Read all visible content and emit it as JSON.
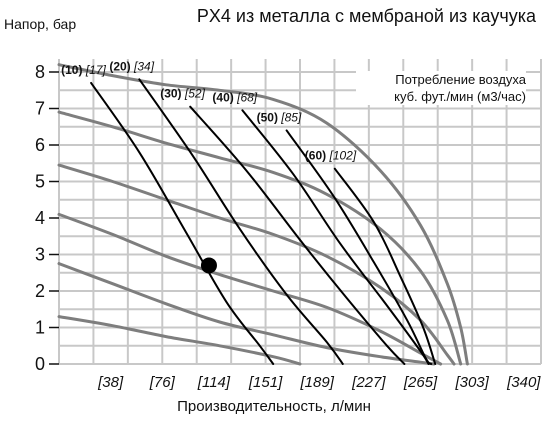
{
  "chart_data": {
    "type": "line",
    "title": "PX4 из металла с мембраной из каучука",
    "ylabel": "Напор, бар",
    "xlabel": "Производительность, л/мин",
    "legend": [
      "Потребление воздуха",
      "куб. фут./мин (м3/час)"
    ],
    "legend_position": "top-right",
    "grid": true,
    "ylim": [
      0,
      8.4
    ],
    "xlim": [
      0,
      360
    ],
    "y_ticks": [
      "0",
      "1",
      "2",
      "3",
      "4",
      "5",
      "6",
      "7",
      "8"
    ],
    "x_ticks": [
      "[38]",
      "[76]",
      "[114]",
      "[151]",
      "[189]",
      "[227]",
      "[265]",
      "[303]",
      "[340]"
    ],
    "performance_curves": [
      {
        "points": [
          [
            0,
            8.2
          ],
          [
            40,
            7.9
          ],
          [
            80,
            7.65
          ],
          [
            120,
            7.5
          ],
          [
            160,
            7.25
          ],
          [
            200,
            6.6
          ],
          [
            240,
            5.3
          ],
          [
            270,
            3.8
          ],
          [
            290,
            2.2
          ],
          [
            300,
            1.0
          ],
          [
            305,
            0
          ]
        ]
      },
      {
        "points": [
          [
            0,
            6.9
          ],
          [
            40,
            6.5
          ],
          [
            80,
            6.05
          ],
          [
            120,
            5.65
          ],
          [
            160,
            5.25
          ],
          [
            200,
            4.65
          ],
          [
            240,
            3.7
          ],
          [
            270,
            2.55
          ],
          [
            290,
            1.2
          ],
          [
            300,
            0
          ]
        ]
      },
      {
        "points": [
          [
            0,
            5.45
          ],
          [
            40,
            5.0
          ],
          [
            80,
            4.5
          ],
          [
            120,
            4.0
          ],
          [
            160,
            3.55
          ],
          [
            200,
            2.95
          ],
          [
            240,
            2.1
          ],
          [
            270,
            1.2
          ],
          [
            290,
            0.25
          ],
          [
            295,
            0
          ]
        ]
      },
      {
        "points": [
          [
            0,
            4.1
          ],
          [
            40,
            3.55
          ],
          [
            80,
            2.95
          ],
          [
            120,
            2.45
          ],
          [
            160,
            2.0
          ],
          [
            200,
            1.55
          ],
          [
            240,
            0.9
          ],
          [
            270,
            0.3
          ],
          [
            285,
            0
          ]
        ]
      },
      {
        "points": [
          [
            0,
            2.75
          ],
          [
            40,
            2.2
          ],
          [
            80,
            1.65
          ],
          [
            120,
            1.15
          ],
          [
            160,
            0.8
          ],
          [
            200,
            0.45
          ],
          [
            240,
            0.2
          ],
          [
            270,
            0.05
          ],
          [
            280,
            0
          ]
        ]
      },
      {
        "points": [
          [
            0,
            1.3
          ],
          [
            40,
            1.05
          ],
          [
            80,
            0.75
          ],
          [
            120,
            0.5
          ],
          [
            160,
            0.2
          ],
          [
            180,
            0
          ]
        ]
      }
    ],
    "air_consumption_curves": [
      {
        "label": "(10)",
        "label_alt": "[17]",
        "points": [
          [
            24,
            7.7
          ],
          [
            60,
            5.8
          ],
          [
            95,
            3.6
          ],
          [
            125,
            1.7
          ],
          [
            150,
            0.5
          ],
          [
            160,
            0
          ]
        ]
      },
      {
        "label": "(20)",
        "label_alt": "[34]",
        "points": [
          [
            60,
            7.8
          ],
          [
            100,
            5.7
          ],
          [
            135,
            3.7
          ],
          [
            170,
            1.9
          ],
          [
            200,
            0.6
          ],
          [
            212,
            0
          ]
        ]
      },
      {
        "label": "(30)",
        "label_alt": "[52]",
        "points": [
          [
            98,
            7.05
          ],
          [
            140,
            5.3
          ],
          [
            180,
            3.4
          ],
          [
            215,
            1.8
          ],
          [
            245,
            0.5
          ],
          [
            258,
            0
          ]
        ]
      },
      {
        "label": "(40)",
        "label_alt": "[68]",
        "points": [
          [
            137,
            6.95
          ],
          [
            175,
            5.2
          ],
          [
            210,
            3.3
          ],
          [
            245,
            1.6
          ],
          [
            270,
            0.35
          ],
          [
            276,
            0
          ]
        ]
      },
      {
        "label": "(50)",
        "label_alt": "[85]",
        "points": [
          [
            170,
            6.4
          ],
          [
            205,
            4.6
          ],
          [
            235,
            2.8
          ],
          [
            260,
            1.2
          ],
          [
            274,
            0.15
          ],
          [
            278,
            0
          ]
        ]
      },
      {
        "label": "(60)",
        "label_alt": "[102]",
        "points": [
          [
            206,
            5.35
          ],
          [
            235,
            3.9
          ],
          [
            255,
            2.4
          ],
          [
            272,
            1.0
          ],
          [
            281,
            0
          ]
        ]
      }
    ],
    "marker": {
      "x": 112,
      "y": 2.7
    }
  }
}
